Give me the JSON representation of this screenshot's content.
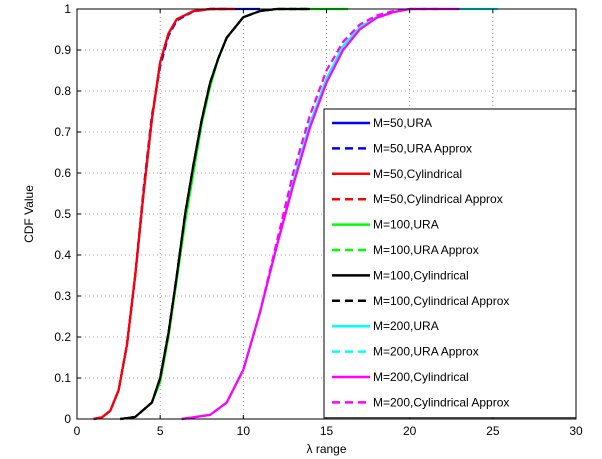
{
  "chart_data": {
    "type": "line",
    "title": "",
    "xlabel": "λ range",
    "ylabel": "CDF Value",
    "xlim": [
      0,
      30
    ],
    "ylim": [
      0,
      1
    ],
    "xticks": [
      0,
      5,
      10,
      15,
      20,
      25,
      30
    ],
    "yticks": [
      0,
      0.1,
      0.2,
      0.3,
      0.4,
      0.5,
      0.6,
      0.7,
      0.8,
      0.9,
      1
    ],
    "grid": true,
    "legend_position": "bottom-right",
    "series": [
      {
        "name": "M=50,URA",
        "color": "#0000ff",
        "dash": "solid",
        "points": [
          [
            1.0,
            0
          ],
          [
            1.5,
            0.004
          ],
          [
            2,
            0.02
          ],
          [
            2.5,
            0.07
          ],
          [
            3,
            0.18
          ],
          [
            3.5,
            0.35
          ],
          [
            4,
            0.55
          ],
          [
            4.5,
            0.73
          ],
          [
            5,
            0.87
          ],
          [
            5.5,
            0.94
          ],
          [
            6,
            0.975
          ],
          [
            7,
            0.995
          ],
          [
            8,
            1.0
          ],
          [
            11,
            1.0
          ]
        ]
      },
      {
        "name": "M=50,URA Approx",
        "color": "#0000ff",
        "dash": "dashed",
        "points": [
          [
            1.0,
            0
          ],
          [
            1.5,
            0.004
          ],
          [
            2,
            0.02
          ],
          [
            2.5,
            0.07
          ],
          [
            3,
            0.18
          ],
          [
            3.5,
            0.35
          ],
          [
            4,
            0.56
          ],
          [
            4.5,
            0.74
          ],
          [
            5,
            0.86
          ],
          [
            5.5,
            0.935
          ],
          [
            6,
            0.972
          ],
          [
            7,
            0.994
          ],
          [
            8,
            1.0
          ],
          [
            9,
            1.0
          ]
        ]
      },
      {
        "name": "M=50,Cylindrical",
        "color": "#ff0000",
        "dash": "solid",
        "points": [
          [
            1.0,
            0
          ],
          [
            1.5,
            0.004
          ],
          [
            2,
            0.02
          ],
          [
            2.5,
            0.07
          ],
          [
            3,
            0.18
          ],
          [
            3.5,
            0.35
          ],
          [
            4,
            0.55
          ],
          [
            4.5,
            0.73
          ],
          [
            5,
            0.87
          ],
          [
            5.5,
            0.94
          ],
          [
            6,
            0.975
          ],
          [
            7,
            0.995
          ],
          [
            8,
            1.0
          ],
          [
            9.5,
            1.0
          ]
        ]
      },
      {
        "name": "M=50,Cylindrical Approx",
        "color": "#ff0000",
        "dash": "dashed",
        "points": [
          [
            1.0,
            0
          ],
          [
            1.5,
            0.004
          ],
          [
            2,
            0.02
          ],
          [
            2.5,
            0.07
          ],
          [
            3,
            0.18
          ],
          [
            3.5,
            0.35
          ],
          [
            4,
            0.55
          ],
          [
            4.5,
            0.73
          ],
          [
            5,
            0.87
          ],
          [
            5.5,
            0.94
          ],
          [
            6,
            0.975
          ],
          [
            7,
            0.995
          ],
          [
            8,
            1.0
          ],
          [
            9,
            1.0
          ]
        ]
      },
      {
        "name": "M=100,URA",
        "color": "#00ff00",
        "dash": "solid",
        "points": [
          [
            2.6,
            0
          ],
          [
            3.5,
            0.005
          ],
          [
            4.5,
            0.04
          ],
          [
            5,
            0.09
          ],
          [
            5.5,
            0.2
          ],
          [
            6,
            0.34
          ],
          [
            6.5,
            0.48
          ],
          [
            7,
            0.6
          ],
          [
            7.5,
            0.72
          ],
          [
            8,
            0.81
          ],
          [
            8.5,
            0.88
          ],
          [
            9,
            0.93
          ],
          [
            10,
            0.98
          ],
          [
            11,
            0.995
          ],
          [
            12,
            1.0
          ],
          [
            16.3,
            1.0
          ]
        ]
      },
      {
        "name": "M=100,URA Approx",
        "color": "#00ff00",
        "dash": "dashed",
        "points": [
          [
            2.6,
            0
          ],
          [
            3.5,
            0.005
          ],
          [
            4.5,
            0.04
          ],
          [
            5,
            0.1
          ],
          [
            5.5,
            0.21
          ],
          [
            6,
            0.35
          ],
          [
            6.5,
            0.5
          ],
          [
            7,
            0.62
          ],
          [
            7.5,
            0.73
          ],
          [
            8,
            0.82
          ],
          [
            8.5,
            0.88
          ],
          [
            9,
            0.93
          ],
          [
            10,
            0.98
          ],
          [
            11,
            0.995
          ],
          [
            12,
            1.0
          ],
          [
            14,
            1.0
          ]
        ]
      },
      {
        "name": "M=100,Cylindrical",
        "color": "#000000",
        "dash": "solid",
        "points": [
          [
            2.6,
            0
          ],
          [
            3.5,
            0.005
          ],
          [
            4.5,
            0.04
          ],
          [
            5,
            0.1
          ],
          [
            5.5,
            0.21
          ],
          [
            6,
            0.35
          ],
          [
            6.5,
            0.5
          ],
          [
            7,
            0.62
          ],
          [
            7.5,
            0.73
          ],
          [
            8,
            0.82
          ],
          [
            8.5,
            0.88
          ],
          [
            9,
            0.93
          ],
          [
            10,
            0.98
          ],
          [
            11,
            0.995
          ],
          [
            12,
            1.0
          ],
          [
            14,
            1.0
          ]
        ]
      },
      {
        "name": "M=100,Cylindrical Approx",
        "color": "#000000",
        "dash": "dashed",
        "points": [
          [
            2.6,
            0
          ],
          [
            3.5,
            0.005
          ],
          [
            4.5,
            0.04
          ],
          [
            5,
            0.1
          ],
          [
            5.5,
            0.21
          ],
          [
            6,
            0.35
          ],
          [
            6.5,
            0.5
          ],
          [
            7,
            0.62
          ],
          [
            7.5,
            0.73
          ],
          [
            8,
            0.82
          ],
          [
            8.5,
            0.88
          ],
          [
            9,
            0.93
          ],
          [
            10,
            0.98
          ],
          [
            11,
            0.995
          ],
          [
            12,
            1.0
          ],
          [
            14,
            1.0
          ]
        ]
      },
      {
        "name": "M=200,URA",
        "color": "#00ffff",
        "dash": "solid",
        "points": [
          [
            6.3,
            0
          ],
          [
            8,
            0.01
          ],
          [
            9,
            0.04
          ],
          [
            10,
            0.12
          ],
          [
            11,
            0.26
          ],
          [
            12,
            0.42
          ],
          [
            13,
            0.58
          ],
          [
            14,
            0.72
          ],
          [
            15,
            0.83
          ],
          [
            16,
            0.91
          ],
          [
            17,
            0.955
          ],
          [
            18,
            0.98
          ],
          [
            19,
            0.993
          ],
          [
            20,
            1.0
          ],
          [
            25.3,
            1.0
          ]
        ]
      },
      {
        "name": "M=200,URA Approx",
        "color": "#00ffff",
        "dash": "dashed",
        "points": [
          [
            6.3,
            0
          ],
          [
            8,
            0.01
          ],
          [
            9,
            0.04
          ],
          [
            10,
            0.12
          ],
          [
            11,
            0.26
          ],
          [
            12,
            0.42
          ],
          [
            13,
            0.58
          ],
          [
            14,
            0.72
          ],
          [
            15,
            0.83
          ],
          [
            16,
            0.91
          ],
          [
            17,
            0.955
          ],
          [
            18,
            0.98
          ],
          [
            19,
            0.993
          ],
          [
            20,
            1.0
          ],
          [
            22,
            1.0
          ]
        ]
      },
      {
        "name": "M=200,Cylindrical",
        "color": "#ff00ff",
        "dash": "solid",
        "points": [
          [
            6.3,
            0
          ],
          [
            8,
            0.01
          ],
          [
            9,
            0.04
          ],
          [
            10,
            0.12
          ],
          [
            11,
            0.26
          ],
          [
            12,
            0.42
          ],
          [
            13,
            0.57
          ],
          [
            14,
            0.71
          ],
          [
            15,
            0.82
          ],
          [
            16,
            0.9
          ],
          [
            17,
            0.95
          ],
          [
            18,
            0.978
          ],
          [
            19,
            0.992
          ],
          [
            20,
            1.0
          ],
          [
            23,
            1.0
          ]
        ]
      },
      {
        "name": "M=200,Cylindrical Approx",
        "color": "#ff00ff",
        "dash": "dashed",
        "points": [
          [
            6.3,
            0
          ],
          [
            8,
            0.01
          ],
          [
            9,
            0.04
          ],
          [
            10,
            0.12
          ],
          [
            11,
            0.26
          ],
          [
            12,
            0.43
          ],
          [
            13,
            0.6
          ],
          [
            14,
            0.74
          ],
          [
            15,
            0.85
          ],
          [
            16,
            0.92
          ],
          [
            17,
            0.962
          ],
          [
            18,
            0.984
          ],
          [
            19,
            0.995
          ],
          [
            20,
            1.0
          ],
          [
            22,
            1.0
          ]
        ]
      }
    ]
  }
}
